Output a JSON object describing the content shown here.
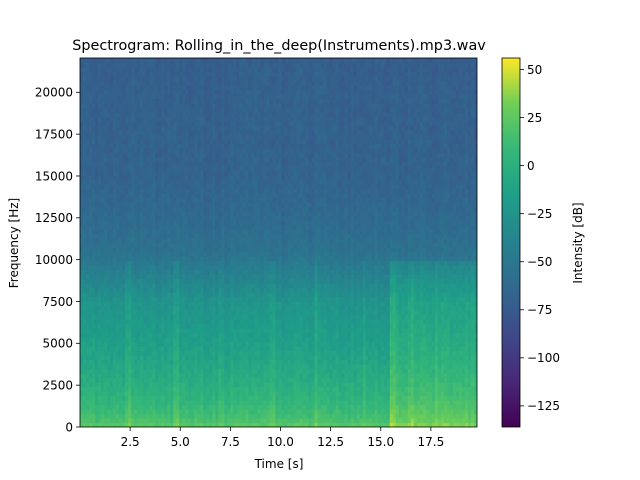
{
  "chart_data": {
    "type": "heatmap",
    "title": "Spectrogram: Rolling_in_the_deep(Instruments).mp3.wav",
    "xlabel": "Time [s]",
    "ylabel": "Frequency [Hz]",
    "colorbar_label": "Intensity [dB]",
    "colormap": "viridis",
    "xlim": [
      0,
      19.8
    ],
    "ylim": [
      0,
      22050
    ],
    "clim": [
      -136,
      56
    ],
    "x_ticks": [
      2.5,
      5.0,
      7.5,
      10.0,
      12.5,
      15.0,
      17.5
    ],
    "x_tick_labels": [
      "2.5",
      "5.0",
      "7.5",
      "10.0",
      "12.5",
      "15.0",
      "17.5"
    ],
    "y_ticks": [
      0,
      2500,
      5000,
      7500,
      10000,
      12500,
      15000,
      17500,
      20000
    ],
    "y_tick_labels": [
      "0",
      "2500",
      "5000",
      "7500",
      "10000",
      "12500",
      "15000",
      "17500",
      "20000"
    ],
    "cbar_ticks": [
      -125,
      -100,
      -75,
      -50,
      -25,
      0,
      25,
      50
    ],
    "cbar_tick_labels": [
      "−125",
      "−100",
      "−75",
      "−50",
      "−25",
      "0",
      "25",
      "50"
    ],
    "intensity_profile": {
      "frequency_hz": [
        0,
        500,
        1500,
        3000,
        5000,
        7500,
        9000,
        10500,
        12500,
        15000,
        20000,
        22050
      ],
      "mean_db": [
        25,
        15,
        5,
        -5,
        -15,
        -25,
        -40,
        -55,
        -62,
        -68,
        -70,
        -72
      ]
    },
    "loud_regions": [
      {
        "time_range_s": [
          15.5,
          19.8
        ],
        "frequency_range_hz": [
          0,
          10000
        ],
        "boost_db": 12
      }
    ],
    "transient_times_s": [
      2.4,
      4.8,
      7.0,
      9.6,
      11.8,
      14.2,
      15.6,
      16.6,
      17.8
    ]
  }
}
